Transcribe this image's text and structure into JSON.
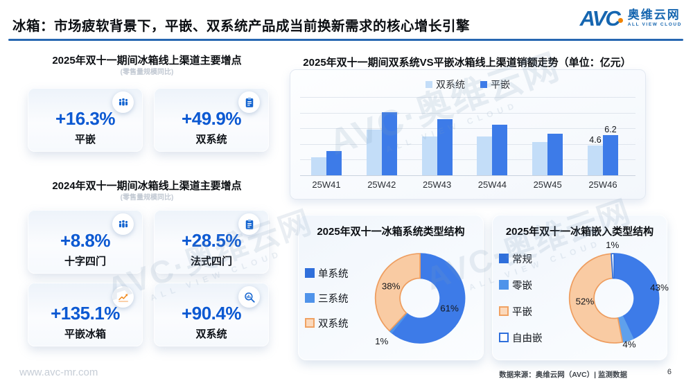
{
  "header": {
    "title": "冰箱：市场疲软背景下，平嵌、双系统产品成当前换新需求的核心增长引擎",
    "logo": {
      "brand": "AVC",
      "cn": "奥维云网",
      "en": "ALL VIEW CLOUD"
    }
  },
  "watermark": {
    "big": "AVC·奥维云网",
    "small": "ALL VIEW CLOUD"
  },
  "left": {
    "sections": [
      {
        "title": "2025年双十一期间冰箱线上渠道主要增点",
        "subtitle": "(零售量规模同比)",
        "cards": [
          {
            "value": "+16.3%",
            "label": "平嵌",
            "icon": "people-group-icon"
          },
          {
            "value": "+49.9%",
            "label": "双系统",
            "icon": "clipboard-icon"
          }
        ]
      },
      {
        "title": "2024年双十一期间冰箱线上渠道主要增点",
        "subtitle": "(零售量规模同比)",
        "cards": [
          {
            "value": "+8.8%",
            "label": "十字四门",
            "icon": "people-group-icon"
          },
          {
            "value": "+28.5%",
            "label": "法式四门",
            "icon": "clipboard-icon"
          },
          {
            "value": "+135.1%",
            "label": "平嵌冰箱",
            "icon": "line-chart-icon"
          },
          {
            "value": "+90.4%",
            "label": "双系统",
            "icon": "magnifier-chart-icon"
          }
        ]
      }
    ]
  },
  "chart_data": [
    {
      "type": "bar",
      "title": "2025年双十一期间双系统VS平嵌冰箱线上渠道销额走势（单位：亿元）",
      "unit": "亿元",
      "categories": [
        "25W41",
        "25W42",
        "25W43",
        "25W44",
        "25W45",
        "25W46"
      ],
      "series": [
        {
          "name": "双系统",
          "color": "#C3DDF8",
          "values": [
            2.8,
            7.0,
            6.0,
            5.9,
            5.1,
            4.6
          ],
          "point_labels": [
            "",
            "",
            "",
            "",
            "",
            "4.6"
          ]
        },
        {
          "name": "平嵌",
          "color": "#3D7BE8",
          "values": [
            3.7,
            9.7,
            8.6,
            7.8,
            6.4,
            6.2
          ],
          "point_labels": [
            "",
            "",
            "",
            "",
            "",
            "6.2"
          ]
        }
      ],
      "ylim": [
        0,
        12
      ],
      "grid_divisions": 5,
      "grid": true,
      "legend_position": "top"
    },
    {
      "type": "pie",
      "title": "2025年双十一冰箱系统类型结构",
      "labels": [
        "单系统",
        "三系统",
        "双系统"
      ],
      "values": [
        61,
        1,
        38
      ],
      "display_labels": [
        "61%",
        "1%",
        "38%"
      ],
      "colors": [
        "#3D7BE8",
        "#4F93EA",
        "#F9CBA3"
      ],
      "border_colors": [
        "#3D7BE8",
        "#4F93EA",
        "#EE9D5F"
      ],
      "legend_fill": [
        "#2F6FDB",
        "#4F93EA",
        "#FBD9BC"
      ],
      "legend_border": [
        "#2F6FDB",
        "#4F93EA",
        "#F0A263"
      ],
      "label_radius": [
        0.7,
        1.3,
        0.7
      ],
      "donut_hole": 0.45,
      "start_angle": "top",
      "direction": "clockwise",
      "legend_position": "left"
    },
    {
      "type": "pie",
      "title": "2025年双十一冰箱嵌入类型结构",
      "labels": [
        "常规",
        "零嵌",
        "平嵌",
        "自由嵌"
      ],
      "values": [
        43,
        4,
        52,
        1
      ],
      "display_labels": [
        "43%",
        "4%",
        "52%",
        "1%"
      ],
      "colors": [
        "#3D7BE8",
        "#5FA0EC",
        "#F9CBA3",
        "#FFFFFF"
      ],
      "border_colors": [
        "#3D7BE8",
        "#5FA0EC",
        "#EE9D5F",
        "#2F6FDB"
      ],
      "legend_fill": [
        "#2F6FDB",
        "#4F93EA",
        "#FBD9BC",
        "#FFFFFF"
      ],
      "legend_border": [
        "#2F6FDB",
        "#4F93EA",
        "#F0A263",
        "#2F6FDB"
      ],
      "label_radius": [
        1.04,
        1.1,
        0.66,
        1.18
      ],
      "donut_hole": 0.45,
      "start_angle": "top",
      "direction": "clockwise",
      "legend_position": "left"
    }
  ],
  "footer": {
    "site": "www.avc-mr.com",
    "source": "数据来源：奥维云网（AVC）| 监测数据",
    "page": "6"
  }
}
